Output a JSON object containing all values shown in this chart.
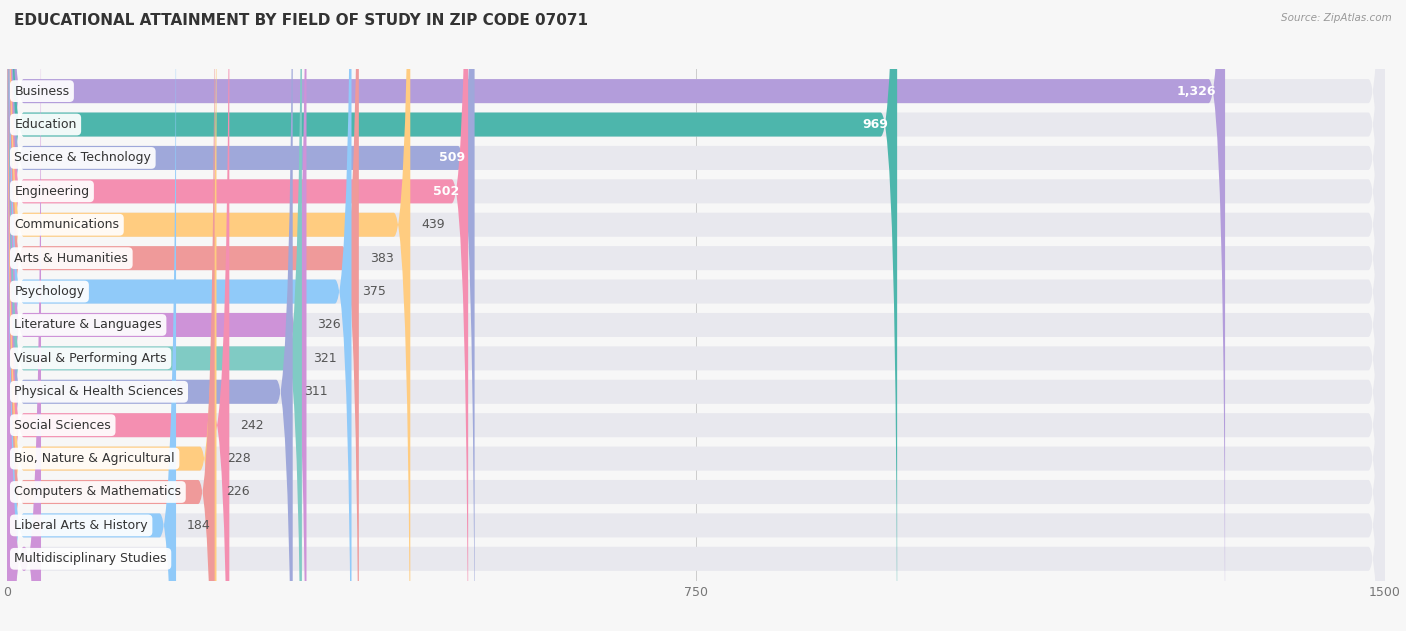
{
  "title": "EDUCATIONAL ATTAINMENT BY FIELD OF STUDY IN ZIP CODE 07071",
  "source": "Source: ZipAtlas.com",
  "categories": [
    "Business",
    "Education",
    "Science & Technology",
    "Engineering",
    "Communications",
    "Arts & Humanities",
    "Psychology",
    "Literature & Languages",
    "Visual & Performing Arts",
    "Physical & Health Sciences",
    "Social Sciences",
    "Bio, Nature & Agricultural",
    "Computers & Mathematics",
    "Liberal Arts & History",
    "Multidisciplinary Studies"
  ],
  "values": [
    1326,
    969,
    509,
    502,
    439,
    383,
    375,
    326,
    321,
    311,
    242,
    228,
    226,
    184,
    36
  ],
  "bar_colors": [
    "#b39ddb",
    "#4db6ac",
    "#9fa8da",
    "#f48fb1",
    "#ffcc80",
    "#ef9a9a",
    "#90caf9",
    "#ce93d8",
    "#80cbc4",
    "#9fa8da",
    "#f48fb1",
    "#ffcc80",
    "#ef9a9a",
    "#90caf9",
    "#ce93d8"
  ],
  "xlim": [
    0,
    1500
  ],
  "xticks": [
    0,
    750,
    1500
  ],
  "background_color": "#f7f7f7",
  "bar_bg_color": "#e8e8ee",
  "title_fontsize": 11,
  "value_label_fontsize": 9,
  "category_fontsize": 9,
  "bar_height": 0.72,
  "white_text_threshold": 500
}
